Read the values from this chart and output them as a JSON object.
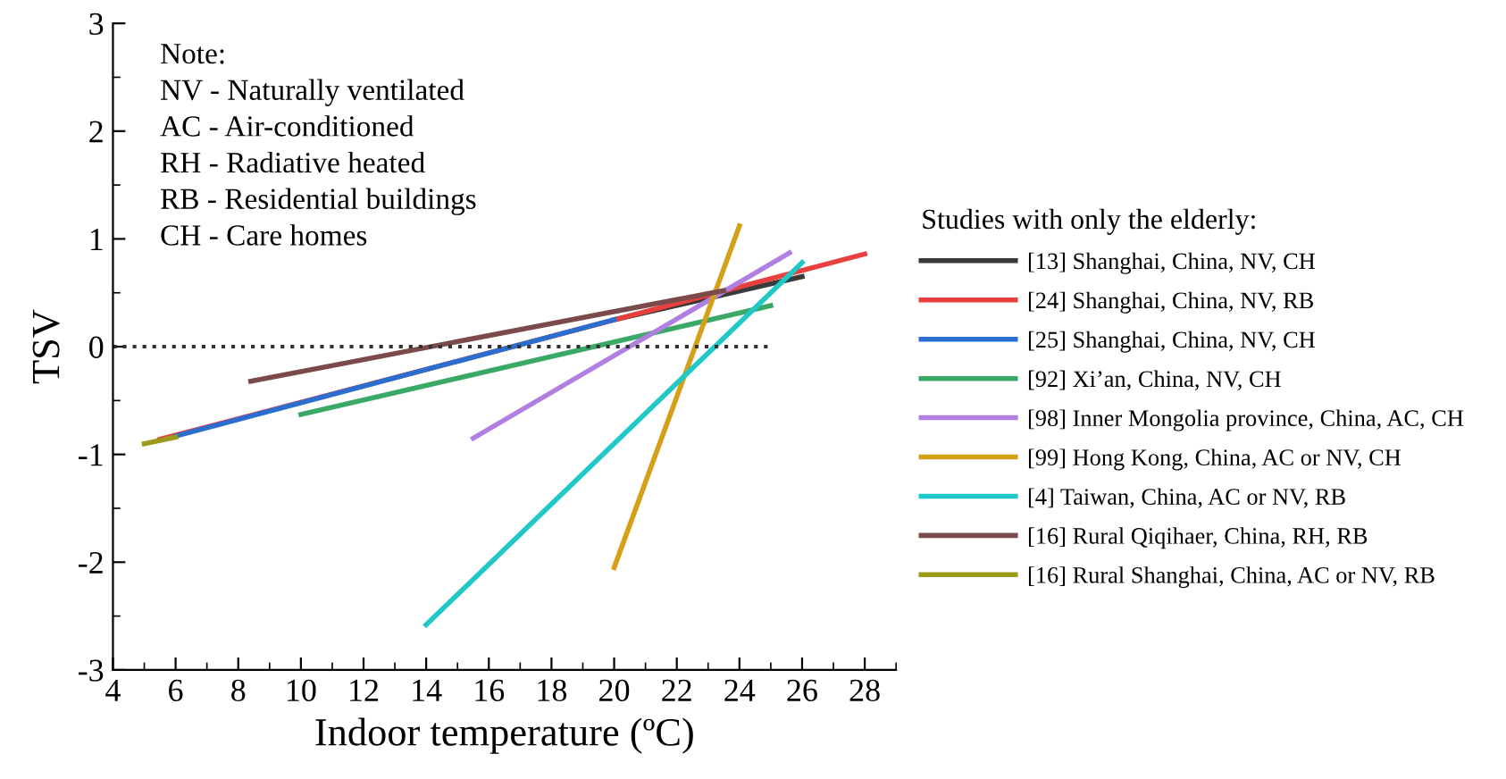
{
  "chart_data": {
    "type": "line",
    "xlabel": "Indoor temperature (ºC)",
    "ylabel": "TSV",
    "legend_title": "Studies with only the elderly:",
    "legend": "right",
    "xlim": [
      4,
      29
    ],
    "ylim": [
      -3,
      3
    ],
    "xticks": [
      4,
      6,
      8,
      10,
      12,
      14,
      16,
      18,
      20,
      22,
      24,
      26,
      28
    ],
    "yticks": [
      -3,
      -2,
      -1,
      0,
      1,
      2,
      3
    ],
    "grid": false,
    "marker": "none",
    "line_style": "solid",
    "series": [
      {
        "name": "[13] Shanghai, China, NV, CH",
        "color": "#3a3a3a",
        "x": [
          20,
          26
        ],
        "values": [
          0.25,
          0.65
        ]
      },
      {
        "name": "[24] Shanghai, China, NV, RB",
        "color": "#e8403e",
        "x": [
          5.5,
          28
        ],
        "values": [
          -0.86,
          0.86
        ]
      },
      {
        "name": "[25] Shanghai, China, NV, CH",
        "color": "#2a6fd0",
        "x": [
          6,
          20
        ],
        "values": [
          -0.83,
          0.25
        ]
      },
      {
        "name": "[92] Xi’an, China, NV, CH",
        "color": "#3aa866",
        "x": [
          10,
          25
        ],
        "values": [
          -0.63,
          0.38
        ]
      },
      {
        "name": "[98] Inner Mongolia province, China, AC, CH",
        "color": "#b07fe0",
        "x": [
          15.5,
          25.6
        ],
        "values": [
          -0.85,
          0.87
        ]
      },
      {
        "name": "[99] Hong Kong, China, AC or NV, CH",
        "color": "#d4a017",
        "x": [
          20,
          24
        ],
        "values": [
          -2.05,
          1.12
        ]
      },
      {
        "name": "[4] Taiwan, China, AC or NV, RB",
        "color": "#20c8c8",
        "x": [
          14,
          26
        ],
        "values": [
          -2.58,
          0.78
        ]
      },
      {
        "name": "[16] Rural Qiqihaer, China, RH, RB",
        "color": "#7b4a4a",
        "x": [
          8.4,
          23.5
        ],
        "values": [
          -0.32,
          0.52
        ]
      },
      {
        "name": "[16] Rural Shanghai, China, AC or NV, RB",
        "color": "#9c9a1a",
        "x": [
          5,
          6
        ],
        "values": [
          -0.9,
          -0.84
        ]
      }
    ],
    "ref_lines": [
      {
        "axis": "y",
        "value": 0,
        "color": "#333333",
        "line_style": "dotted"
      }
    ],
    "annotations": [
      "Note:\nNV - Naturally ventilated\nAC - Air-conditioned\nRH - Radiative heated\nRB - Residential buildings\nCH - Care homes"
    ]
  }
}
